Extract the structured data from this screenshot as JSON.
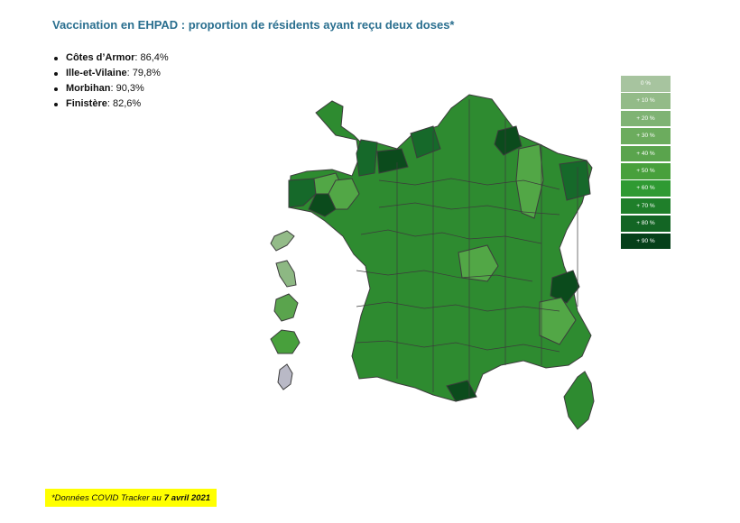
{
  "title": "Vaccination en EHPAD : proportion de résidents ayant reçu deux doses*",
  "stats": [
    {
      "name": "Côtes d’Armor",
      "value": " : 86,4%"
    },
    {
      "name": "Ille-et-Vilaine",
      "value": " : 79,8%"
    },
    {
      "name": "Morbihan",
      "value": " : 90,3%"
    },
    {
      "name": "Finistère",
      "value": " : 82,6%"
    }
  ],
  "legend": [
    {
      "label": "0 %",
      "color": "#a7c49f"
    },
    {
      "label": "+ 10 %",
      "color": "#93bb88"
    },
    {
      "label": "+ 20 %",
      "color": "#7fb374"
    },
    {
      "label": "+ 30 %",
      "color": "#6cac5e"
    },
    {
      "label": "+ 40 %",
      "color": "#5aa44d"
    },
    {
      "label": "+ 50 %",
      "color": "#48a03c"
    },
    {
      "label": "+ 60 %",
      "color": "#2f9a33"
    },
    {
      "label": "+ 70 %",
      "color": "#1f7f2a"
    },
    {
      "label": "+ 80 %",
      "color": "#136524"
    },
    {
      "label": "+ 90 %",
      "color": "#06401a"
    }
  ],
  "footnote": {
    "text": "*Données COVID Tracker au",
    "date": "7 avril 2021"
  },
  "map_colors": {
    "default": "#2e8b30",
    "light": "#52a746",
    "dark": "#16692a",
    "darkest": "#0b4b1c",
    "guadeloupe": "#93bb88",
    "martinique": "#8db883",
    "guyane": "#5aa44d",
    "reunion": "#48a03c",
    "mayotte": "#b9b9c6",
    "border": "#3c3c3c"
  }
}
